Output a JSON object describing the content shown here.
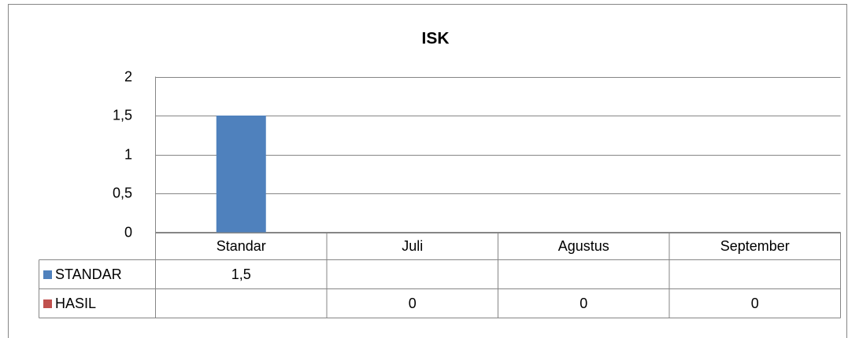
{
  "chart_data": {
    "type": "bar",
    "title": "ISK",
    "categories": [
      "Standar",
      "Juli",
      "Agustus",
      "September"
    ],
    "series": [
      {
        "name": "STANDAR",
        "color": "#4f81bd",
        "values": [
          1.5,
          null,
          null,
          null
        ],
        "value_labels": [
          "1,5",
          null,
          null,
          null
        ]
      },
      {
        "name": "HASIL",
        "color": "#c0504d",
        "values": [
          null,
          0,
          0,
          0
        ]
      }
    ],
    "ylim": [
      0,
      2
    ],
    "yticks": [
      0,
      {
        "value": 0.5,
        "label": "0,5"
      },
      1,
      {
        "value": 1.5,
        "label": "1,5"
      },
      2
    ],
    "grid": true,
    "data_table": true
  }
}
